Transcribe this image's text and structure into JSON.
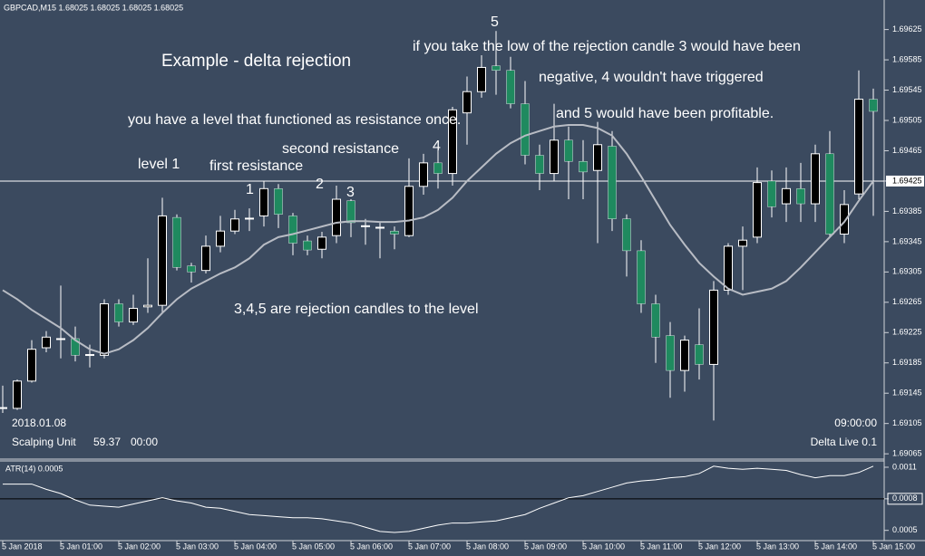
{
  "chart_data": [
    {
      "type": "candlestick",
      "header": "GBPCAD,M15  1.68025 1.68025 1.68025 1.68025",
      "open": [
        1.69125,
        1.69125,
        1.69161,
        1.69205,
        1.69216,
        1.69217,
        1.69195,
        1.69195,
        1.69263,
        1.69239,
        1.69259,
        1.69261,
        1.69377,
        1.69313,
        1.69307,
        1.69339,
        1.69359,
        1.69375,
        1.69379,
        1.69415,
        1.69379,
        1.69346,
        1.69335,
        1.69353,
        1.69399,
        1.69365,
        1.69363,
        1.69359,
        1.69353,
        1.69418,
        1.69449,
        1.69435,
        1.69515,
        1.69543,
        1.69577,
        1.69571,
        1.69527,
        1.69459,
        1.69435,
        1.69479,
        1.69451,
        1.69439,
        1.69471,
        1.69375,
        1.69333,
        1.69263,
        1.69221,
        1.69175,
        1.69209,
        1.69183,
        1.69281,
        1.69339,
        1.69351,
        1.69425,
        1.69395,
        1.69415,
        1.69395,
        1.69461,
        1.69355,
        1.69408,
        1.69533
      ],
      "high": [
        1.69155,
        1.69163,
        1.69215,
        1.69227,
        1.69287,
        1.69233,
        1.69209,
        1.69269,
        1.69269,
        1.69275,
        1.69323,
        1.69403,
        1.69381,
        1.69317,
        1.69353,
        1.69379,
        1.69387,
        1.69389,
        1.69425,
        1.69421,
        1.69383,
        1.69353,
        1.69358,
        1.69419,
        1.69401,
        1.69375,
        1.69371,
        1.69365,
        1.69455,
        1.69461,
        1.69467,
        1.69523,
        1.69563,
        1.69591,
        1.69623,
        1.69589,
        1.69557,
        1.69473,
        1.69527,
        1.69497,
        1.69479,
        1.69503,
        1.69491,
        1.69381,
        1.69347,
        1.69275,
        1.69239,
        1.69221,
        1.69257,
        1.69293,
        1.69343,
        1.69365,
        1.69443,
        1.69439,
        1.69443,
        1.69449,
        1.69473,
        1.69491,
        1.69413,
        1.69571,
        1.69547
      ],
      "low": [
        1.69119,
        1.69123,
        1.69159,
        1.69199,
        1.69191,
        1.69187,
        1.69179,
        1.69191,
        1.69233,
        1.69235,
        1.69251,
        1.69251,
        1.69307,
        1.69291,
        1.69303,
        1.69331,
        1.69355,
        1.69359,
        1.69365,
        1.69363,
        1.69327,
        1.69327,
        1.69323,
        1.69343,
        1.69351,
        1.69341,
        1.69323,
        1.69335,
        1.69351,
        1.69407,
        1.69415,
        1.69419,
        1.69473,
        1.69535,
        1.69539,
        1.69521,
        1.69447,
        1.69413,
        1.69425,
        1.69401,
        1.69401,
        1.69343,
        1.69359,
        1.69299,
        1.69251,
        1.69185,
        1.69139,
        1.69147,
        1.69163,
        1.69109,
        1.69275,
        1.69281,
        1.69343,
        1.69377,
        1.69371,
        1.69371,
        1.69371,
        1.69351,
        1.69343,
        1.69401,
        1.69379
      ],
      "close": [
        1.69126,
        1.69161,
        1.69203,
        1.69219,
        1.69217,
        1.69195,
        1.69196,
        1.69263,
        1.69239,
        1.69257,
        1.69261,
        1.69379,
        1.69311,
        1.69305,
        1.69339,
        1.69359,
        1.69375,
        1.69376,
        1.69415,
        1.69381,
        1.69343,
        1.69334,
        1.69351,
        1.69401,
        1.6937,
        1.69366,
        1.69364,
        1.69355,
        1.69418,
        1.69449,
        1.69435,
        1.69519,
        1.69543,
        1.69575,
        1.69571,
        1.69527,
        1.69459,
        1.69435,
        1.69479,
        1.69451,
        1.69437,
        1.69473,
        1.69375,
        1.69333,
        1.69263,
        1.69219,
        1.69175,
        1.69215,
        1.69183,
        1.69281,
        1.69339,
        1.69347,
        1.69423,
        1.69391,
        1.69415,
        1.69395,
        1.69461,
        1.69355,
        1.69394,
        1.69533,
        1.69517
      ],
      "up_color": "#000000",
      "down_color": "#1f8a5f",
      "overlay": {
        "color": "#b8bcc4",
        "values": [
          1.69281,
          1.69269,
          1.69255,
          1.69243,
          1.69231,
          1.69215,
          1.69203,
          1.69197,
          1.69203,
          1.69215,
          1.69231,
          1.69251,
          1.69269,
          1.69283,
          1.69293,
          1.69303,
          1.69311,
          1.69323,
          1.69341,
          1.69351,
          1.69355,
          1.6936,
          1.69365,
          1.6937,
          1.69372,
          1.69372,
          1.69371,
          1.69371,
          1.69373,
          1.69377,
          1.69387,
          1.69403,
          1.69425,
          1.69443,
          1.69461,
          1.69475,
          1.69485,
          1.69491,
          1.69497,
          1.69499,
          1.69499,
          1.69495,
          1.69485,
          1.69461,
          1.69431,
          1.69399,
          1.69367,
          1.69341,
          1.69317,
          1.69299,
          1.69283,
          1.69275,
          1.69279,
          1.69283,
          1.69293,
          1.69311,
          1.69331,
          1.69351,
          1.69371,
          1.69399,
          1.69425
        ]
      },
      "ylim": [
        1.69058,
        1.69658
      ],
      "yticks": [
        1.69625,
        1.69585,
        1.69545,
        1.69505,
        1.69465,
        1.69425,
        1.69385,
        1.69345,
        1.69305,
        1.69265,
        1.69225,
        1.69185,
        1.69145,
        1.69105,
        1.69065
      ],
      "level": 1.69425,
      "annotations": [
        "Example - delta rejection",
        "if you take the low of the rejection candle 3 would have been",
        "negative, 4 wouldn't have triggered",
        "you have a level that functioned as resistance once.",
        "and 5 would have been profitable.",
        "second resistance",
        "level 1",
        "first resistance",
        "1",
        "2",
        "3",
        "4",
        "5",
        "3,4,5 are rejection candles to the level"
      ],
      "info": [
        "2018.01.08",
        "Scalping Unit",
        "59.37",
        "00:00",
        "09:00:00",
        "Delta Live 0.1"
      ]
    },
    {
      "type": "line",
      "title": "ATR(14) 0.0005",
      "categories": [
        "5 Jan 2018",
        null,
        null,
        null,
        "5 Jan 01:00",
        null,
        null,
        null,
        "5 Jan 02:00",
        null,
        null,
        null,
        "5 Jan 03:00",
        null,
        null,
        null,
        "5 Jan 04:00",
        null,
        null,
        null,
        "5 Jan 05:00",
        null,
        null,
        null,
        "5 Jan 06:00",
        null,
        null,
        null,
        "5 Jan 07:00",
        null,
        null,
        null,
        "5 Jan 08:00",
        null,
        null,
        null,
        "5 Jan 09:00",
        null,
        null,
        null,
        "5 Jan 10:00",
        null,
        null,
        null,
        "5 Jan 11:00",
        null,
        null,
        null,
        "5 Jan 12:00",
        null,
        null,
        null,
        "5 Jan 13:00",
        null,
        null,
        null,
        "5 Jan 14:00",
        null,
        null,
        null,
        "5 Jan 15:00"
      ],
      "color": "#ffffff",
      "values": [
        0.00094,
        0.00094,
        0.00094,
        0.00089,
        0.00085,
        0.00079,
        0.00074,
        0.00073,
        0.00072,
        0.00075,
        0.00078,
        0.00081,
        0.00078,
        0.00076,
        0.00072,
        0.00071,
        0.00068,
        0.00065,
        0.00064,
        0.00063,
        0.00062,
        0.00062,
        0.00061,
        0.00059,
        0.00057,
        0.00053,
        0.00049,
        0.00048,
        0.00049,
        0.00052,
        0.00055,
        0.00057,
        0.00057,
        0.00058,
        0.00059,
        0.00062,
        0.00065,
        0.00071,
        0.00076,
        0.00081,
        0.00083,
        0.00087,
        0.00091,
        0.00095,
        0.00097,
        0.00098,
        0.001,
        0.00101,
        0.00104,
        0.00111,
        0.00109,
        0.00108,
        0.00109,
        0.00108,
        0.00107,
        0.00103,
        0.001,
        0.00102,
        0.00102,
        0.00105,
        0.00111
      ],
      "ylim": [
        0.00042,
        0.00116
      ],
      "yticks": [
        0.0011,
        0.0008,
        0.0005
      ],
      "level": 0.0008
    }
  ]
}
